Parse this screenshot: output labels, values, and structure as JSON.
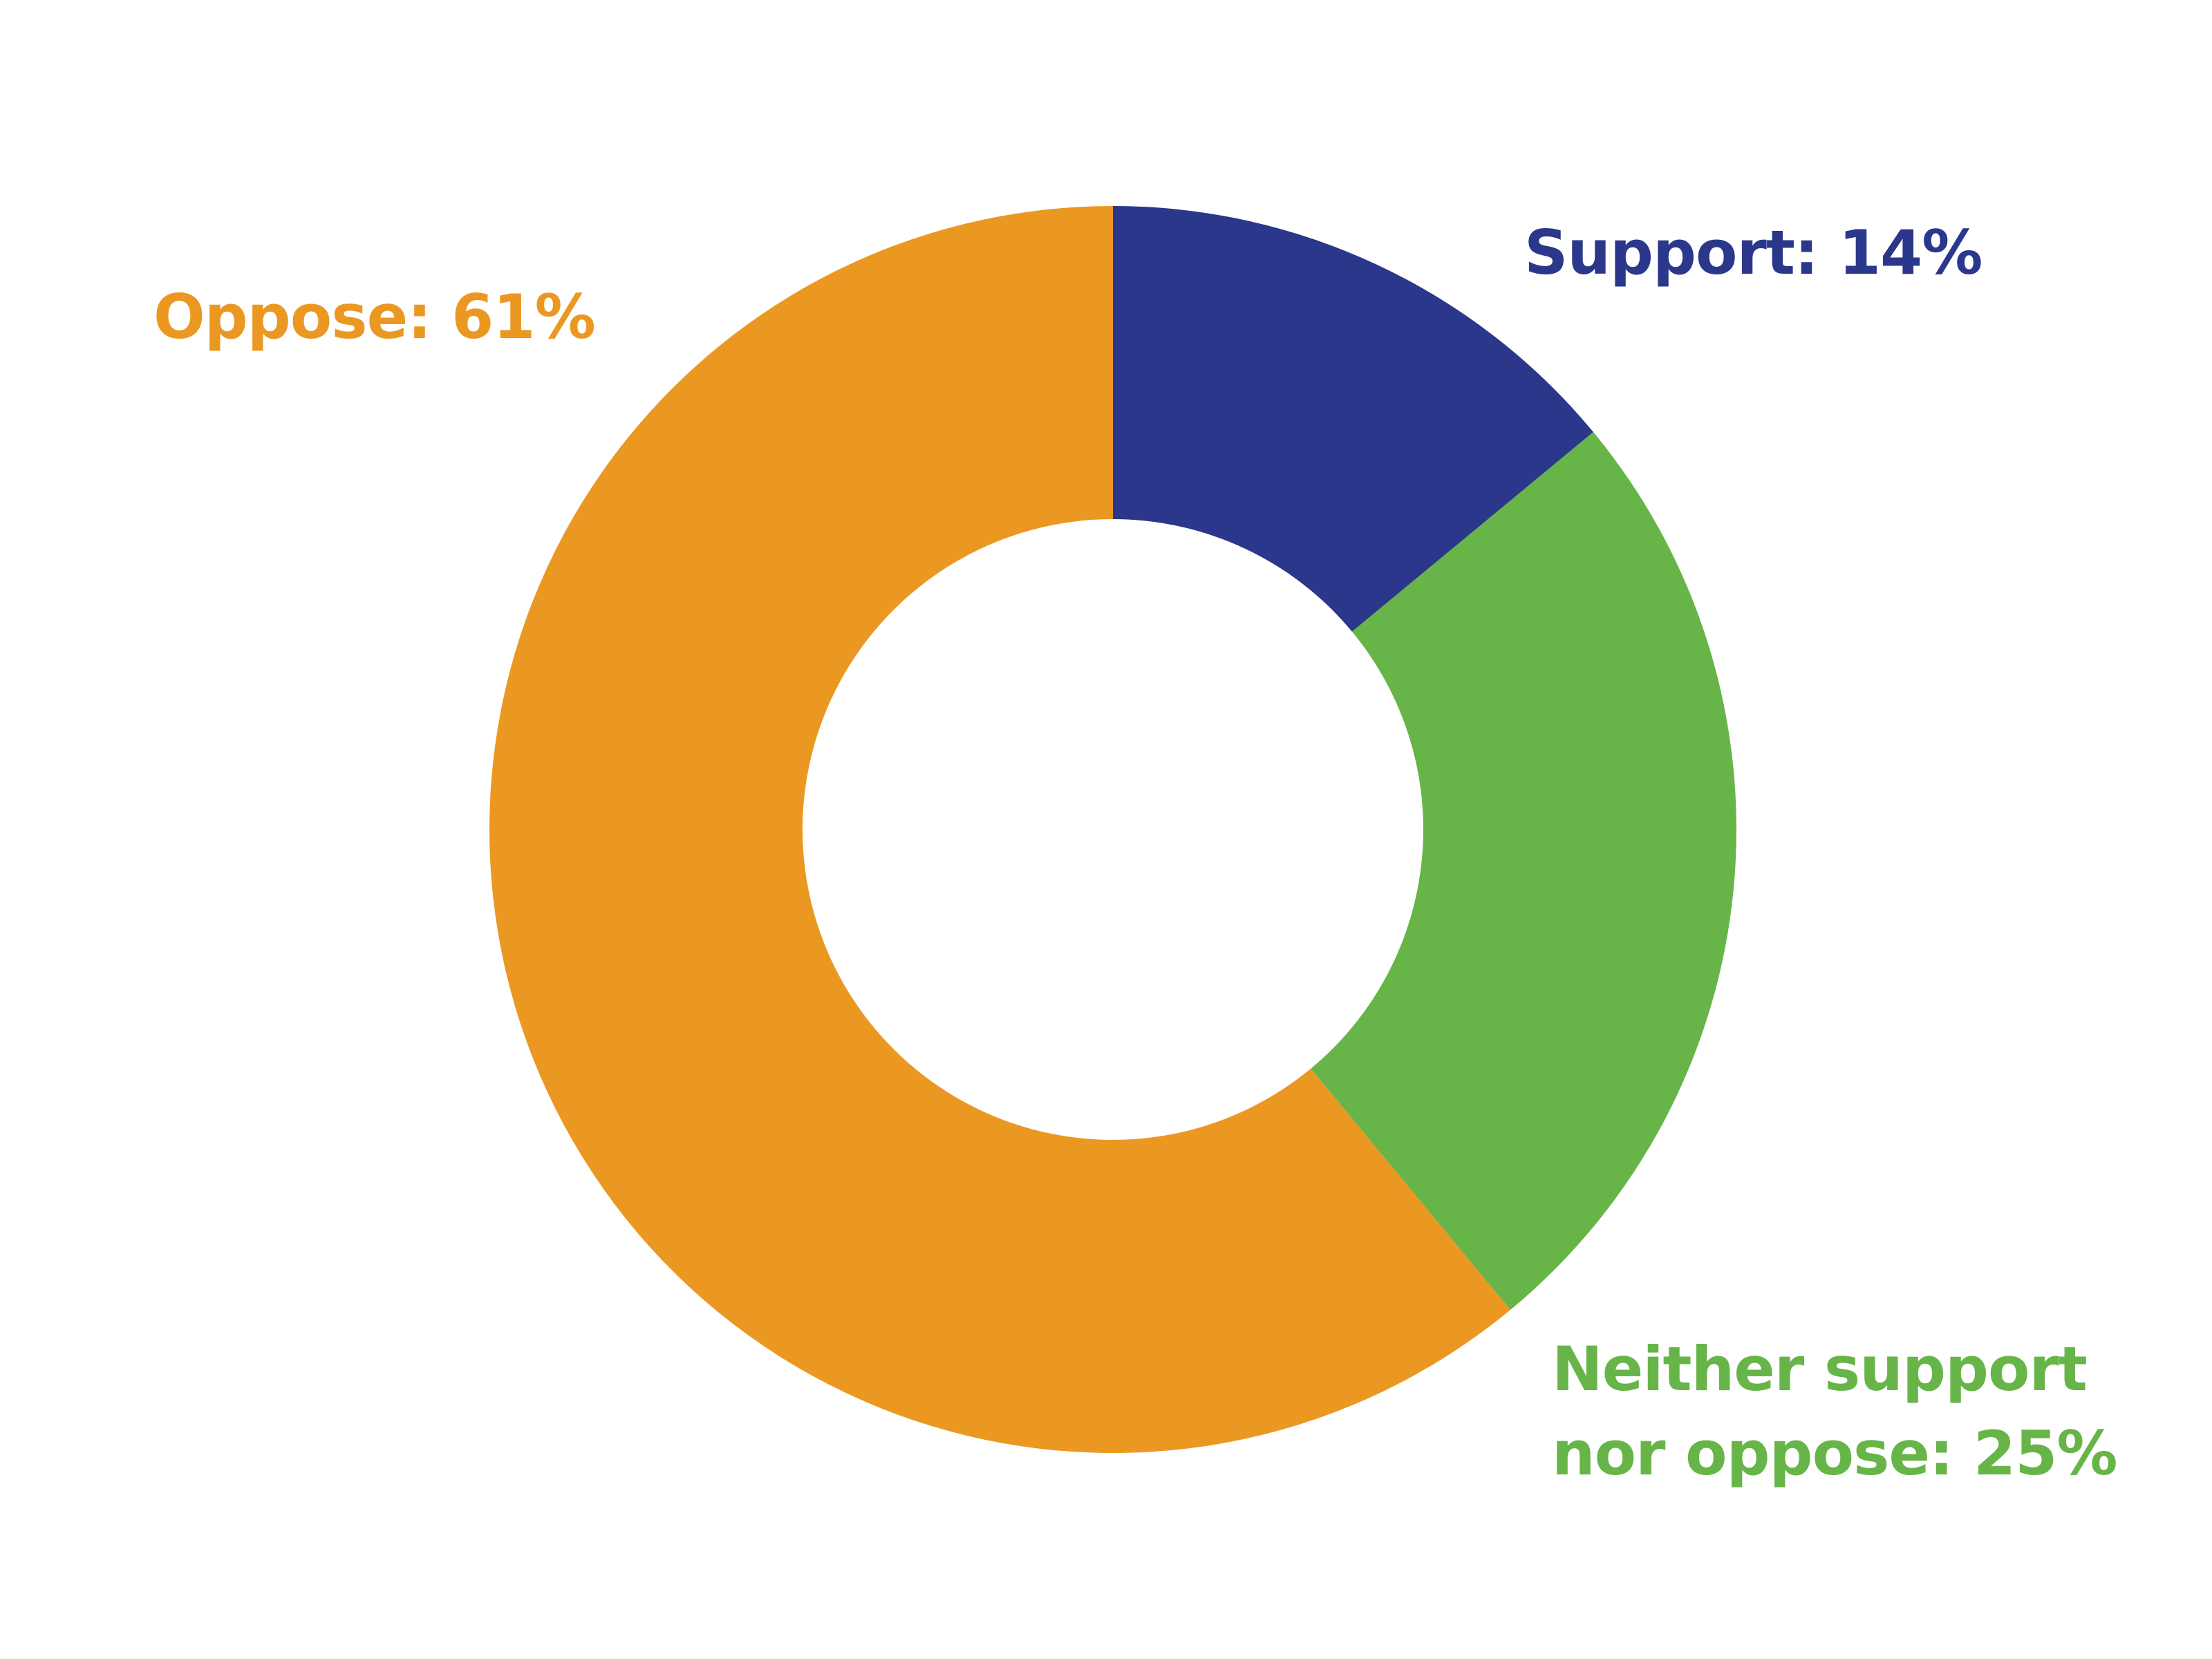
{
  "chart_data": {
    "type": "pie",
    "donut": true,
    "values": [
      14,
      25,
      61
    ],
    "value_labels": [
      "Support: 14%",
      "Neither support nor oppose: 25%",
      "Oppose: 61%"
    ],
    "colors": [
      "#2b378b",
      "#67b548",
      "#eb9823"
    ]
  }
}
